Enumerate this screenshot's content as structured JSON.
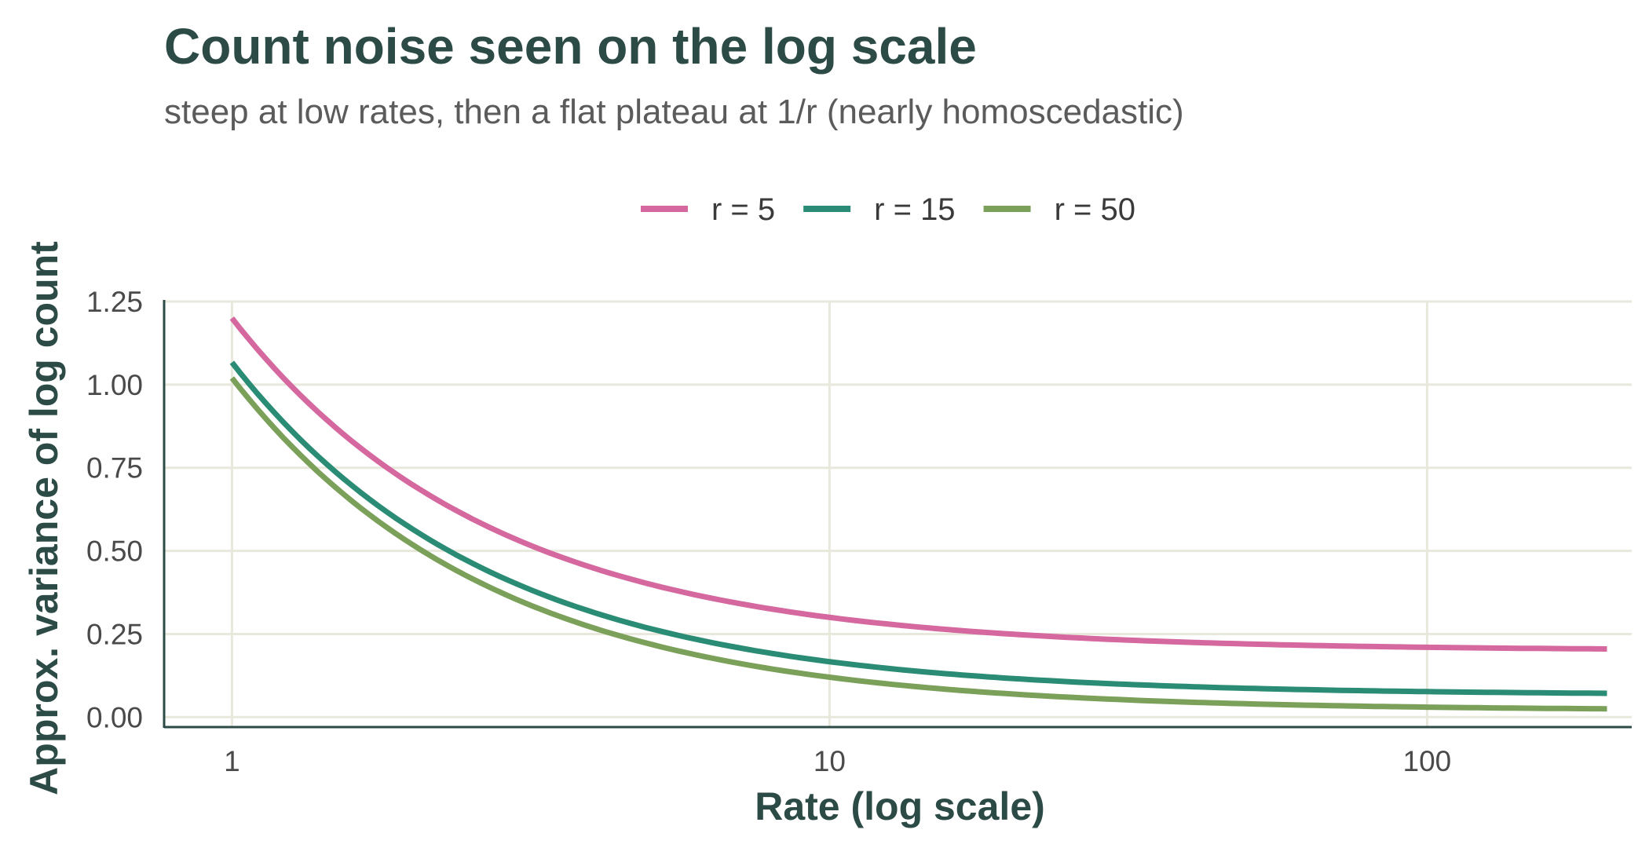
{
  "chart_data": {
    "type": "line",
    "title": "Count noise seen on the log scale",
    "subtitle": "steep at low rates, then a flat plateau at 1/r (nearly homoscedastic)",
    "xlabel": "Rate (log scale)",
    "ylabel": "Approx. variance of log count",
    "x_scale": "log",
    "xlim": [
      0.77,
      220
    ],
    "ylim": [
      -0.03,
      1.25
    ],
    "x_ticks": [
      1,
      10,
      100
    ],
    "x_tick_labels": [
      "1",
      "10",
      "100"
    ],
    "y_ticks": [
      0,
      0.25,
      0.5,
      0.75,
      1.0,
      1.25
    ],
    "y_tick_labels": [
      "0.00",
      "0.25",
      "0.50",
      "0.75",
      "1.00",
      "1.25"
    ],
    "grid": true,
    "legend_position": "top",
    "x_range": [
      1,
      200
    ],
    "series": [
      {
        "name": "r = 5",
        "r": 5,
        "color": "#d4689f",
        "x": [
          1,
          2,
          5,
          10,
          20,
          50,
          100,
          200
        ],
        "y": [
          1.2,
          0.7,
          0.4,
          0.3,
          0.25,
          0.22,
          0.21,
          0.205
        ]
      },
      {
        "name": "r = 15",
        "r": 15,
        "color": "#2a8c74",
        "x": [
          1,
          2,
          5,
          10,
          20,
          50,
          100,
          200
        ],
        "y": [
          1.067,
          0.567,
          0.267,
          0.167,
          0.117,
          0.087,
          0.077,
          0.072
        ]
      },
      {
        "name": "r = 50",
        "r": 50,
        "color": "#7aa05a",
        "x": [
          1,
          2,
          5,
          10,
          20,
          50,
          100,
          200
        ],
        "y": [
          1.02,
          0.52,
          0.22,
          0.12,
          0.07,
          0.04,
          0.03,
          0.025
        ]
      }
    ]
  },
  "colors": {
    "grid": "#e8e8dc",
    "axis": "#2c4a46",
    "title": "#2c4a46",
    "subtitle": "#5b5b5b"
  }
}
